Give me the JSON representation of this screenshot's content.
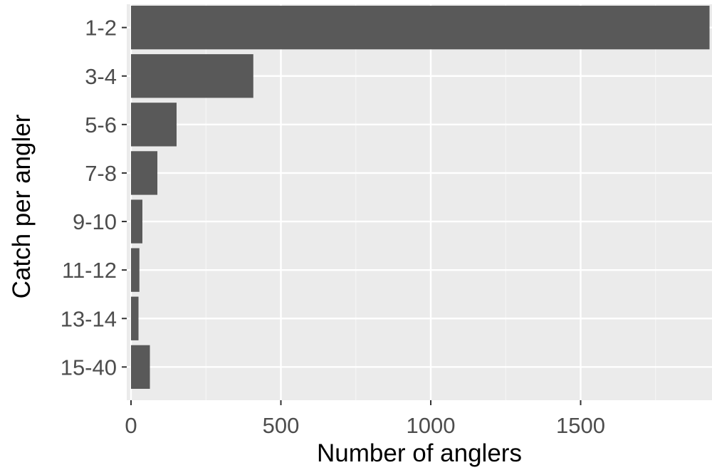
{
  "chart_data": {
    "type": "bar",
    "orientation": "horizontal",
    "categories": [
      "1-2",
      "3-4",
      "5-6",
      "7-8",
      "9-10",
      "11-12",
      "13-14",
      "15-40"
    ],
    "values": [
      1930,
      408,
      152,
      88,
      38,
      28,
      25,
      63
    ],
    "xlabel": "Number of anglers",
    "ylabel": "Catch per angler",
    "xlim": [
      0,
      1930
    ],
    "x_ticks": [
      0,
      500,
      1000,
      1500
    ],
    "x_tick_labels": [
      "0",
      "500",
      "1000",
      "1500"
    ],
    "grid": true,
    "colors": {
      "panel": "#ebebeb",
      "grid_major": "#ffffff",
      "grid_minor": "#f5f5f5",
      "bar": "#595959",
      "tick": "#333333",
      "tick_label": "#4d4d4d",
      "title": "#000000"
    }
  }
}
